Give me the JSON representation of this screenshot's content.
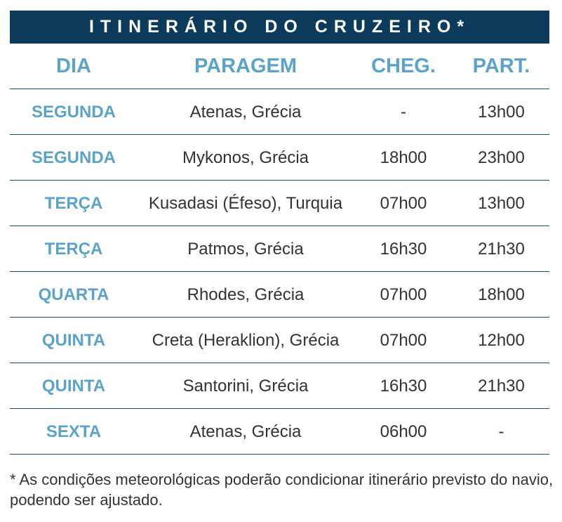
{
  "title": "ITINERÁRIO DO CRUZEIRO*",
  "columns": [
    "DIA",
    "PARAGEM",
    "CHEG.",
    "PART."
  ],
  "rows": [
    {
      "day": "SEGUNDA",
      "stop": "Atenas, Grécia",
      "arrival": "-",
      "departure": "13h00"
    },
    {
      "day": "SEGUNDA",
      "stop": "Mykonos, Grécia",
      "arrival": "18h00",
      "departure": "23h00"
    },
    {
      "day": "TERÇA",
      "stop": "Kusadasi (Éfeso), Turquia",
      "arrival": "07h00",
      "departure": "13h00"
    },
    {
      "day": "TERÇA",
      "stop": "Patmos, Grécia",
      "arrival": "16h30",
      "departure": "21h30"
    },
    {
      "day": "QUARTA",
      "stop": "Rhodes, Grécia",
      "arrival": "07h00",
      "departure": "18h00"
    },
    {
      "day": "QUINTA",
      "stop": "Creta (Heraklion), Grécia",
      "arrival": "07h00",
      "departure": "12h00"
    },
    {
      "day": "QUINTA",
      "stop": "Santorini, Grécia",
      "arrival": "16h30",
      "departure": "21h30"
    },
    {
      "day": "SEXTA",
      "stop": "Atenas, Grécia",
      "arrival": "06h00",
      "departure": "-"
    }
  ],
  "footnote": "* As condições meteorológicas poderão condicionar itinerário previsto do navio, podendo ser ajustado.",
  "colors": {
    "title_bg": "#0c3a5b",
    "accent": "#5ba3c9",
    "text": "#333333"
  }
}
